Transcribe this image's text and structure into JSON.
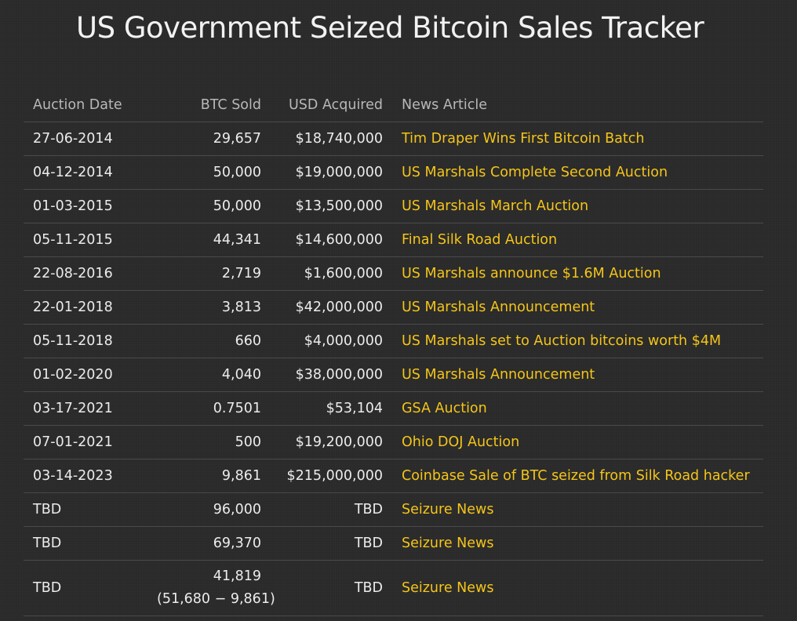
{
  "page": {
    "title": "US Government Seized Bitcoin Sales Tracker"
  },
  "table": {
    "headers": {
      "date": "Auction Date",
      "btc": "BTC Sold",
      "usd": "USD Acquired",
      "news": "News Article"
    },
    "rows": [
      {
        "date": "27-06-2014",
        "btc": "29,657",
        "usd": "$18,740,000",
        "news": "Tim Draper Wins First Bitcoin Batch"
      },
      {
        "date": "04-12-2014",
        "btc": "50,000",
        "usd": "$19,000,000",
        "news": "US Marshals Complete Second Auction"
      },
      {
        "date": "01-03-2015",
        "btc": "50,000",
        "usd": "$13,500,000",
        "news": "US Marshals March Auction"
      },
      {
        "date": "05-11-2015",
        "btc": "44,341",
        "usd": "$14,600,000",
        "news": "Final Silk Road Auction"
      },
      {
        "date": "22-08-2016",
        "btc": "2,719",
        "usd": "$1,600,000",
        "news": "US Marshals announce $1.6M Auction"
      },
      {
        "date": "22-01-2018",
        "btc": "3,813",
        "usd": "$42,000,000",
        "news": "US Marshals Announcement"
      },
      {
        "date": "05-11-2018",
        "btc": "660",
        "usd": "$4,000,000",
        "news": "US Marshals set to Auction bitcoins worth $4M"
      },
      {
        "date": "01-02-2020",
        "btc": "4,040",
        "usd": "$38,000,000",
        "news": "US Marshals Announcement"
      },
      {
        "date": "03-17-2021",
        "btc": "0.7501",
        "usd": "$53,104",
        "news": "GSA Auction"
      },
      {
        "date": "07-01-2021",
        "btc": "500",
        "usd": "$19,200,000",
        "news": "Ohio DOJ Auction"
      },
      {
        "date": "03-14-2023",
        "btc": "9,861",
        "usd": "$215,000,000",
        "news": "Coinbase Sale of BTC seized from Silk Road hacker"
      },
      {
        "date": "TBD",
        "btc": "96,000",
        "usd": "TBD",
        "news": "Seizure News"
      },
      {
        "date": "TBD",
        "btc": "69,370",
        "usd": "TBD",
        "news": "Seizure News"
      },
      {
        "date": "TBD",
        "btc": "41,819",
        "btc_note": "(51,680 − 9,861)",
        "usd": "TBD",
        "news": "Seizure News"
      }
    ]
  },
  "colors": {
    "background": "#2a2a2a",
    "link": "#f5c518",
    "header_text": "#b8b8b8",
    "row_divider": "#4a4a4a"
  }
}
